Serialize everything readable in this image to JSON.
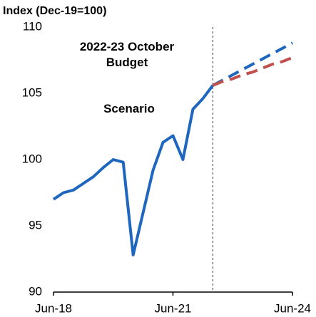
{
  "chart_data": {
    "type": "line",
    "ylabel": "Index (Dec-19=100)",
    "categories": [
      "Jun-18",
      null,
      null,
      null,
      null,
      null,
      null,
      null,
      null,
      null,
      null,
      null,
      "Jun-21",
      null,
      null,
      null,
      null,
      null,
      null,
      null,
      null,
      null,
      null,
      null,
      "Jun-24"
    ],
    "series": [
      {
        "color": "#1f66bf",
        "dashed": false,
        "values": [
          97.0,
          97.5,
          97.7,
          98.2,
          98.7,
          99.4,
          100.0,
          99.8,
          92.8,
          96.0,
          99.2,
          101.3,
          101.8,
          100.0,
          103.8,
          104.6,
          105.6,
          null,
          null,
          null,
          null,
          null,
          null,
          null,
          null
        ]
      },
      {
        "name": "2022-23 October Budget",
        "color": "#1f66bf",
        "dashed": true,
        "values": [
          null,
          null,
          null,
          null,
          null,
          null,
          null,
          null,
          null,
          null,
          null,
          null,
          null,
          null,
          null,
          null,
          105.6,
          106.0,
          106.4,
          106.8,
          107.2,
          107.6,
          108.0,
          108.4,
          108.8
        ]
      },
      {
        "name": "Scenario",
        "color": "#c0504d",
        "dashed": true,
        "values": [
          null,
          null,
          null,
          null,
          null,
          null,
          null,
          null,
          null,
          null,
          null,
          null,
          null,
          null,
          null,
          null,
          105.6,
          105.9,
          106.1,
          106.4,
          106.6,
          106.9,
          107.2,
          107.4,
          107.7
        ]
      }
    ],
    "forecast_start_index": 16,
    "ylim": [
      90,
      110
    ],
    "yticks": [
      90,
      95,
      100,
      105,
      110
    ],
    "grid": false
  }
}
